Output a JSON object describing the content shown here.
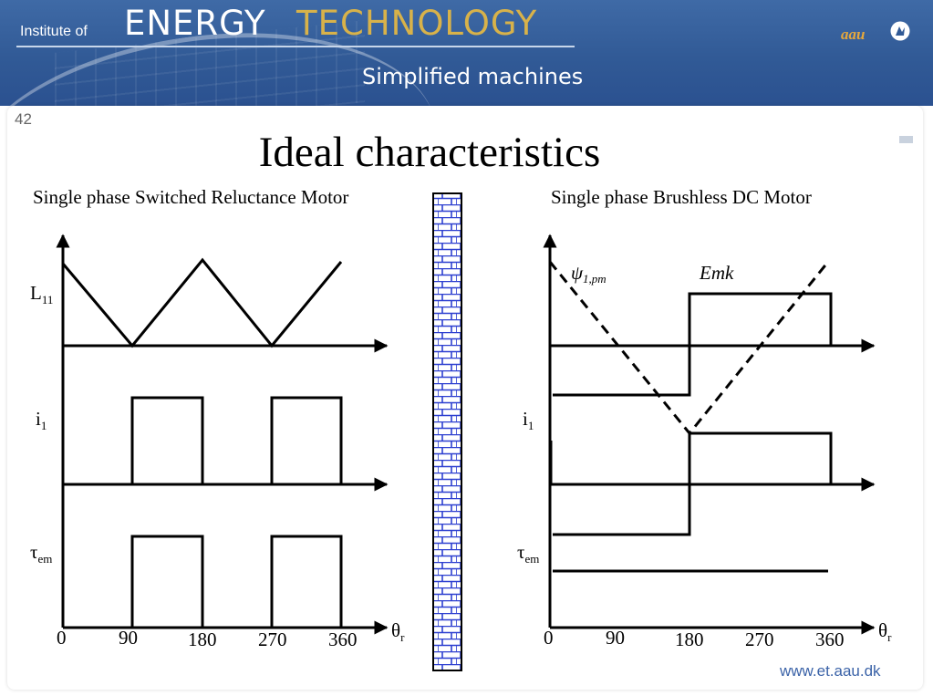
{
  "header": {
    "institute": "Institute of",
    "energy": "ENERGY",
    "technology": "TECHNOLOGY",
    "aau": "aau",
    "subtitle": "Simplified machines"
  },
  "slide": {
    "number": "42",
    "title": "Ideal characteristics",
    "footer_url": "www.et.aau.dk"
  },
  "left_panel": {
    "title": "Single phase Switched Reluctance Motor",
    "labels": {
      "inductance": "L",
      "inductance_sub": "11",
      "current": "i",
      "current_sub": "1",
      "torque": "τ",
      "torque_sub": "em",
      "angle": "θ",
      "angle_sub": "r"
    },
    "ticks": [
      "0",
      "90",
      "180",
      "270",
      "360"
    ]
  },
  "right_panel": {
    "title": "Single phase Brushless DC Motor",
    "labels": {
      "flux": "ψ",
      "flux_sub": "1,pm",
      "emf": "Emk",
      "current": "i",
      "current_sub": "1",
      "torque": "τ",
      "torque_sub": "em",
      "angle": "θ",
      "angle_sub": "r"
    },
    "ticks": [
      "0",
      "90",
      "180",
      "270",
      "360"
    ]
  },
  "colors": {
    "banner": "#315a96",
    "accent_gold": "#d8b24a",
    "divider_brick": "#2d3fd0"
  },
  "icons": [
    "aau-logo-icon"
  ]
}
